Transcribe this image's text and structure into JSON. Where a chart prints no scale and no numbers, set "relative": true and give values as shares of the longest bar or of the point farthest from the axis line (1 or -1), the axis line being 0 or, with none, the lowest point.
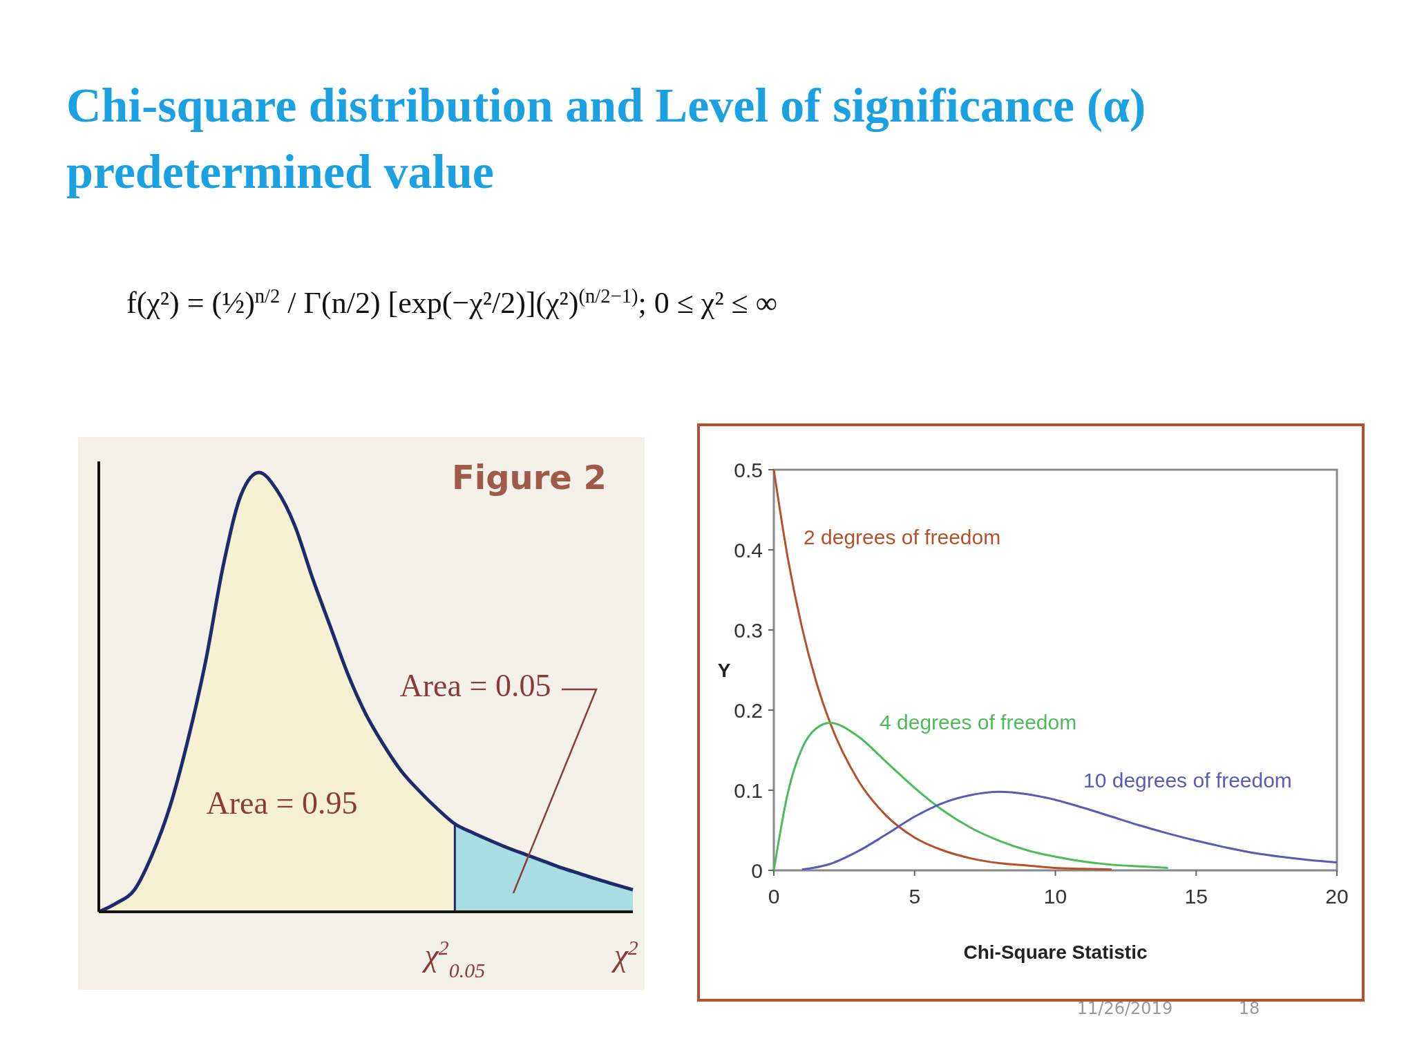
{
  "chart_data": [
    {
      "type": "area",
      "title": "Chi-square distribution and Level of significance (α) predetermined value",
      "subtitle": "f(χ²) = (½)$^{n/2}$ / Γ(n/2) [exp(−χ²/2)](χ²)$^{(n/2−1)}$; 0 ≤ χ² ≤ ∞",
      "xlabel": "χ$^{2}$",
      "relative": true,
      "categories": [
        null,
        null,
        null,
        null,
        null,
        null,
        null,
        null,
        null,
        null,
        null,
        null,
        null,
        null,
        null,
        null,
        null,
        null,
        null,
        null,
        null,
        null,
        null,
        null,
        null,
        null,
        null,
        null,
        null,
        null,
        null
      ],
      "series": [
        {
          "color": "#f6f1d2",
          "values": [
            0,
            0.02,
            0.05,
            0.13,
            0.24,
            0.39,
            0.57,
            0.79,
            0.95,
            1,
            0.96,
            0.88,
            0.76,
            0.65,
            0.54,
            0.45,
            0.38,
            0.32,
            0.275,
            0.235,
            0.2,
            null,
            null,
            null,
            null,
            null,
            null,
            null,
            null,
            null,
            null
          ]
        },
        {
          "color": "#a8dde3",
          "values": [
            null,
            null,
            null,
            null,
            null,
            null,
            null,
            null,
            null,
            null,
            null,
            null,
            null,
            null,
            null,
            null,
            null,
            null,
            null,
            null,
            0.2,
            0.18,
            0.162,
            0.145,
            0.13,
            0.115,
            0.1,
            0.087,
            0.074,
            0.062,
            0.05
          ]
        },
        {
          "type": "line",
          "color": "#1f2a6b",
          "values": [
            0,
            0.02,
            0.05,
            0.13,
            0.24,
            0.39,
            0.57,
            0.79,
            0.95,
            1,
            0.96,
            0.88,
            0.76,
            0.65,
            0.54,
            0.45,
            0.38,
            0.32,
            0.275,
            0.235,
            0.2,
            0.18,
            0.162,
            0.145,
            0.13,
            0.115,
            0.1,
            0.087,
            0.074,
            0.062,
            0.05
          ]
        }
      ],
      "annotations": [
        "Figure 2",
        "Area = 0.95",
        "Area = 0.05",
        "χ$^{2}$$_{0.05}$"
      ]
    },
    {
      "type": "line",
      "xlabel": "Chi-Square Statistic",
      "ylabel": "Y",
      "xlim": [
        0,
        20
      ],
      "ylim": [
        0,
        0.5
      ],
      "xticks": [
        0,
        5,
        10,
        15,
        20
      ],
      "yticks": [
        0,
        0.1,
        0.2,
        0.3,
        0.4,
        0.5
      ],
      "series": [
        {
          "name": "2 degrees of freedom",
          "color": "#b5502a",
          "x": [
            0,
            0.5,
            1,
            1.5,
            2,
            3,
            4,
            5,
            6,
            7,
            8,
            9,
            10,
            11,
            12
          ],
          "values": [
            0.5,
            0.389,
            0.303,
            0.236,
            0.184,
            0.112,
            0.068,
            0.041,
            0.025,
            0.015,
            0.009,
            0.006,
            0.003,
            0.002,
            0.001
          ]
        },
        {
          "name": "4 degrees of freedom",
          "color": "#4cbb5a",
          "x": [
            0,
            0.5,
            1,
            1.5,
            2,
            3,
            4,
            5,
            6,
            7,
            8,
            9,
            10,
            11,
            12,
            13,
            14
          ],
          "values": [
            0,
            0.097,
            0.152,
            0.177,
            0.184,
            0.167,
            0.135,
            0.103,
            0.075,
            0.053,
            0.037,
            0.025,
            0.017,
            0.011,
            0.007,
            0.005,
            0.003
          ]
        },
        {
          "name": "10 degrees of freedom",
          "color": "#5a5ab8",
          "x": [
            1,
            2,
            3,
            4,
            5,
            6,
            7,
            8,
            9,
            10,
            11,
            12,
            13,
            14,
            15,
            16,
            17,
            18,
            19,
            20
          ],
          "values": [
            0.001,
            0.008,
            0.024,
            0.045,
            0.067,
            0.084,
            0.094,
            0.098,
            0.095,
            0.088,
            0.078,
            0.067,
            0.056,
            0.046,
            0.037,
            0.029,
            0.022,
            0.017,
            0.013,
            0.01
          ]
        }
      ],
      "annotations": [
        "11/26/2019",
        "18"
      ]
    }
  ]
}
